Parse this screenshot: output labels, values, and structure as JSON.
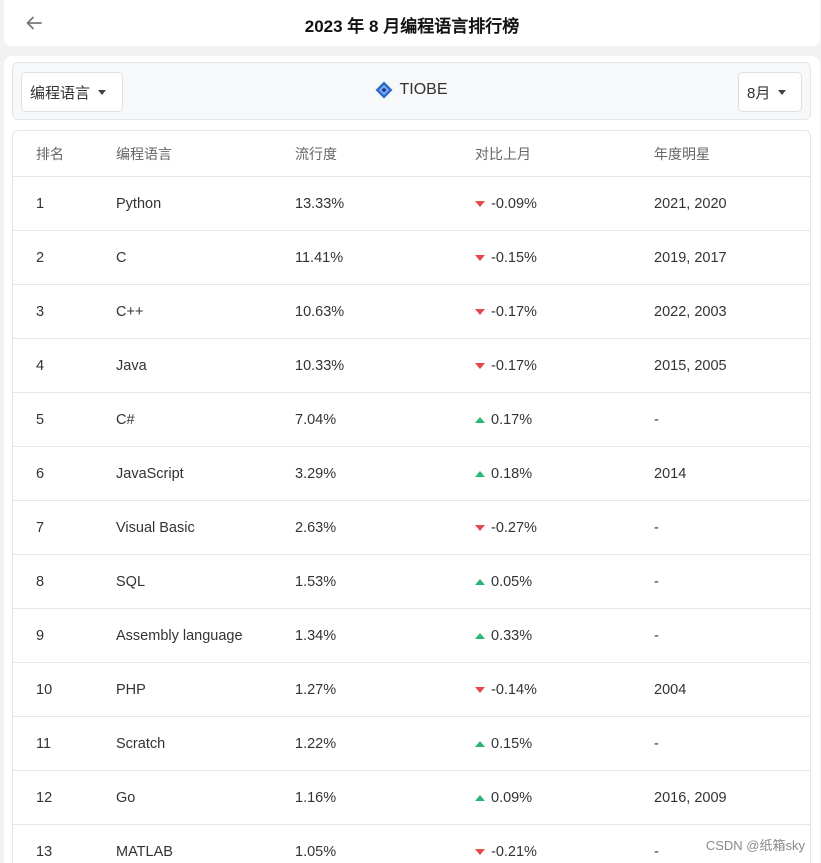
{
  "header": {
    "title": "2023 年 8 月编程语言排行榜"
  },
  "filters": {
    "language_dropdown": "编程语言",
    "source": "TIOBE",
    "month_dropdown": "8月"
  },
  "colors": {
    "down": "#e5484d",
    "up": "#2bb673",
    "accent": "#3b6fd6"
  },
  "table": {
    "columns": [
      "排名",
      "编程语言",
      "流行度",
      "对比上月",
      "年度明星"
    ],
    "rows": [
      {
        "rank": "1",
        "lang": "Python",
        "pop": "13.33%",
        "trend": "down",
        "change": "-0.09%",
        "star": "2021, 2020"
      },
      {
        "rank": "2",
        "lang": "C",
        "pop": "11.41%",
        "trend": "down",
        "change": "-0.15%",
        "star": "2019, 2017"
      },
      {
        "rank": "3",
        "lang": "C++",
        "pop": "10.63%",
        "trend": "down",
        "change": "-0.17%",
        "star": "2022, 2003"
      },
      {
        "rank": "4",
        "lang": "Java",
        "pop": "10.33%",
        "trend": "down",
        "change": "-0.17%",
        "star": "2015, 2005"
      },
      {
        "rank": "5",
        "lang": "C#",
        "pop": "7.04%",
        "trend": "up",
        "change": "0.17%",
        "star": "-"
      },
      {
        "rank": "6",
        "lang": "JavaScript",
        "pop": "3.29%",
        "trend": "up",
        "change": "0.18%",
        "star": "2014"
      },
      {
        "rank": "7",
        "lang": "Visual Basic",
        "pop": "2.63%",
        "trend": "down",
        "change": "-0.27%",
        "star": "-"
      },
      {
        "rank": "8",
        "lang": "SQL",
        "pop": "1.53%",
        "trend": "up",
        "change": "0.05%",
        "star": "-"
      },
      {
        "rank": "9",
        "lang": "Assembly language",
        "pop": "1.34%",
        "trend": "up",
        "change": "0.33%",
        "star": "-"
      },
      {
        "rank": "10",
        "lang": "PHP",
        "pop": "1.27%",
        "trend": "down",
        "change": "-0.14%",
        "star": "2004"
      },
      {
        "rank": "11",
        "lang": "Scratch",
        "pop": "1.22%",
        "trend": "up",
        "change": "0.15%",
        "star": "-"
      },
      {
        "rank": "12",
        "lang": "Go",
        "pop": "1.16%",
        "trend": "up",
        "change": "0.09%",
        "star": "2016, 2009"
      },
      {
        "rank": "13",
        "lang": "MATLAB",
        "pop": "1.05%",
        "trend": "down",
        "change": "-0.21%",
        "star": "-"
      }
    ]
  },
  "watermark": "CSDN @纸箱sky"
}
